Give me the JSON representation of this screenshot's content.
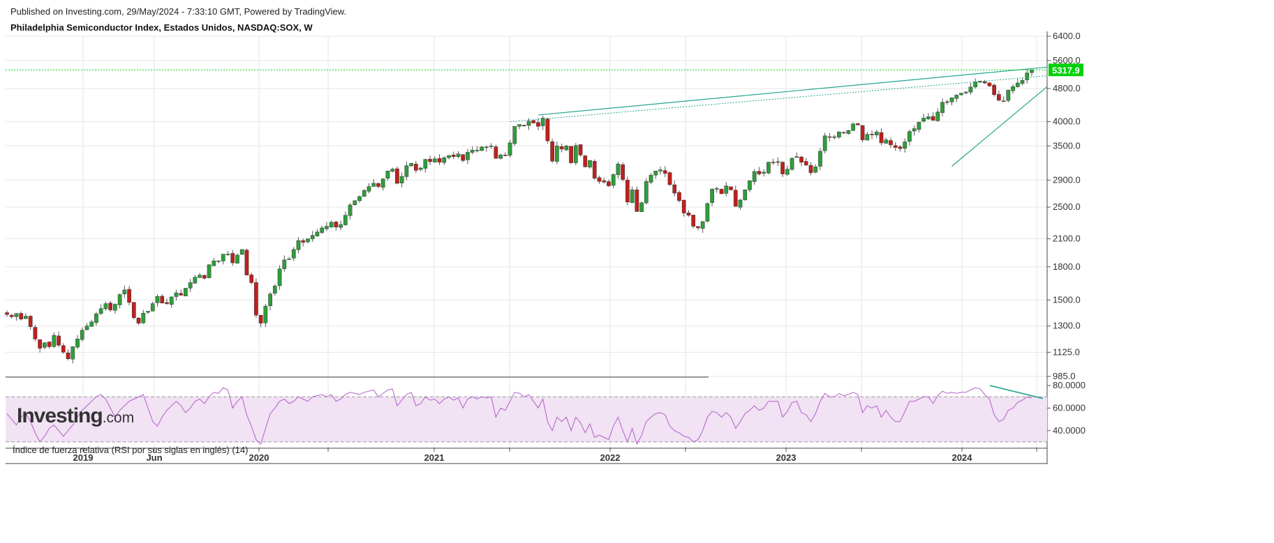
{
  "header": {
    "published": "Published on Investing.com, 29/May/2024 - 7:33:10 GMT, Powered by TradingView.",
    "title": "Philadelphia Semiconductor Index, Estados Unidos, NASDAQ:SOX, W"
  },
  "logo": {
    "main": "Investing",
    "suffix": ".com"
  },
  "colors": {
    "up": "#2e9e3a",
    "down": "#c0201d",
    "wick": "#555555",
    "trend": "#22a58e",
    "last_price_bg": "#00d00a",
    "rsi": "#b260c6",
    "rsi_band": "#f1e2f4",
    "grid": "#e6e6e6"
  },
  "chart_data": [
    {
      "type": "candlestick",
      "panel": "price",
      "scale": "log",
      "y_ticks": [
        "6400.0",
        "5600.0",
        "4800.0",
        "4000.0",
        "3500.0",
        "2900.0",
        "2500.0",
        "2100.0",
        "1800.0",
        "1500.0",
        "1300.0",
        "1125.0",
        "985.0"
      ],
      "ylim": [
        985,
        6400
      ],
      "x_ticks": [
        "2019",
        "Jun",
        "2020",
        "2021",
        "2022",
        "2023",
        "2024"
      ],
      "last_price": "5317.9",
      "weekly_closes_approx": [
        1385,
        1368,
        1392,
        1350,
        1372,
        1295,
        1210,
        1150,
        1185,
        1160,
        1235,
        1170,
        1125,
        1085,
        1160,
        1210,
        1270,
        1300,
        1330,
        1390,
        1430,
        1470,
        1420,
        1465,
        1545,
        1585,
        1480,
        1360,
        1320,
        1395,
        1410,
        1470,
        1530,
        1475,
        1470,
        1525,
        1560,
        1540,
        1600,
        1650,
        1700,
        1720,
        1690,
        1820,
        1860,
        1860,
        1930,
        1930,
        1840,
        1920,
        1980,
        1720,
        1650,
        1380,
        1320,
        1450,
        1550,
        1620,
        1780,
        1870,
        1880,
        1980,
        2080,
        2060,
        2100,
        2140,
        2180,
        2230,
        2250,
        2300,
        2240,
        2270,
        2390,
        2530,
        2590,
        2650,
        2740,
        2800,
        2850,
        2800,
        2920,
        3050,
        3080,
        2850,
        2960,
        3140,
        3180,
        3060,
        3100,
        3250,
        3210,
        3260,
        3200,
        3280,
        3320,
        3300,
        3350,
        3230,
        3380,
        3420,
        3420,
        3480,
        3480,
        3500,
        3270,
        3330,
        3320,
        3560,
        3900,
        3940,
        3920,
        4010,
        3970,
        3900,
        4080,
        3600,
        3220,
        3500,
        3440,
        3500,
        3190,
        3510,
        3330,
        3120,
        3230,
        2930,
        2880,
        2870,
        2810,
        2990,
        3170,
        2910,
        2570,
        2750,
        2440,
        2560,
        2880,
        2980,
        3050,
        3070,
        3010,
        2830,
        2700,
        2590,
        2420,
        2390,
        2250,
        2230,
        2310,
        2550,
        2760,
        2770,
        2690,
        2810,
        2750,
        2510,
        2600,
        2750,
        2890,
        3040,
        3000,
        3030,
        3200,
        3200,
        3210,
        3000,
        3080,
        3270,
        3300,
        3200,
        3150,
        3020,
        3120,
        3400,
        3700,
        3680,
        3680,
        3780,
        3760,
        3810,
        3950,
        3930,
        3620,
        3730,
        3720,
        3780,
        3560,
        3620,
        3520,
        3470,
        3450,
        3580,
        3790,
        3850,
        3990,
        4080,
        4110,
        4030,
        4220,
        4450,
        4450,
        4560,
        4630,
        4680,
        4710,
        4840,
        4980,
        5000,
        4950,
        4870,
        4640,
        4500,
        4480,
        4760,
        4850,
        4950,
        5020,
        5230,
        5317.9
      ],
      "annotations": [
        "Upper resistance trend line from late-2021 high to 2024 highs (solid and dotted)",
        "Rising support trend line from late-2023 low",
        "Horizontal dotted level at last price"
      ]
    },
    {
      "type": "line",
      "panel": "indicator",
      "label": "Índice de fuerza relativa (RSI por sus siglas en inglés) (14)",
      "y_ticks": [
        "80.0000",
        "60.0000",
        "40.0000"
      ],
      "ylim": [
        25,
        85
      ],
      "band": [
        30,
        70
      ],
      "values_approx": [
        55,
        50,
        45,
        52,
        55,
        48,
        38,
        30,
        35,
        42,
        45,
        40,
        35,
        40,
        45,
        52,
        58,
        62,
        66,
        70,
        72,
        68,
        60,
        52,
        58,
        62,
        66,
        68,
        70,
        72,
        60,
        48,
        44,
        52,
        58,
        62,
        66,
        62,
        56,
        60,
        66,
        68,
        64,
        70,
        74,
        73,
        78,
        76,
        60,
        66,
        70,
        54,
        44,
        32,
        28,
        42,
        55,
        60,
        66,
        68,
        64,
        66,
        70,
        68,
        66,
        70,
        71,
        72,
        70,
        72,
        66,
        68,
        72,
        74,
        73,
        72,
        74,
        75,
        76,
        70,
        73,
        76,
        77,
        62,
        67,
        72,
        74,
        62,
        64,
        70,
        67,
        68,
        64,
        68,
        70,
        67,
        69,
        60,
        68,
        70,
        68,
        70,
        69,
        70,
        52,
        60,
        58,
        66,
        74,
        73,
        70,
        72,
        66,
        60,
        68,
        48,
        40,
        52,
        48,
        52,
        40,
        52,
        47,
        38,
        46,
        34,
        36,
        34,
        32,
        44,
        52,
        40,
        30,
        42,
        28,
        36,
        48,
        52,
        55,
        56,
        54,
        44,
        40,
        38,
        35,
        34,
        30,
        32,
        40,
        52,
        57,
        56,
        52,
        56,
        52,
        42,
        48,
        55,
        58,
        62,
        58,
        60,
        66,
        66,
        66,
        52,
        57,
        65,
        66,
        56,
        54,
        48,
        55,
        66,
        73,
        70,
        70,
        73,
        71,
        72,
        74,
        72,
        56,
        62,
        60,
        62,
        52,
        58,
        52,
        48,
        48,
        57,
        66,
        66,
        68,
        70,
        70,
        64,
        71,
        75,
        73,
        74,
        73,
        74,
        74,
        76,
        78,
        77,
        72,
        68,
        54,
        48,
        50,
        58,
        60,
        65,
        67,
        70,
        69
      ]
    }
  ]
}
